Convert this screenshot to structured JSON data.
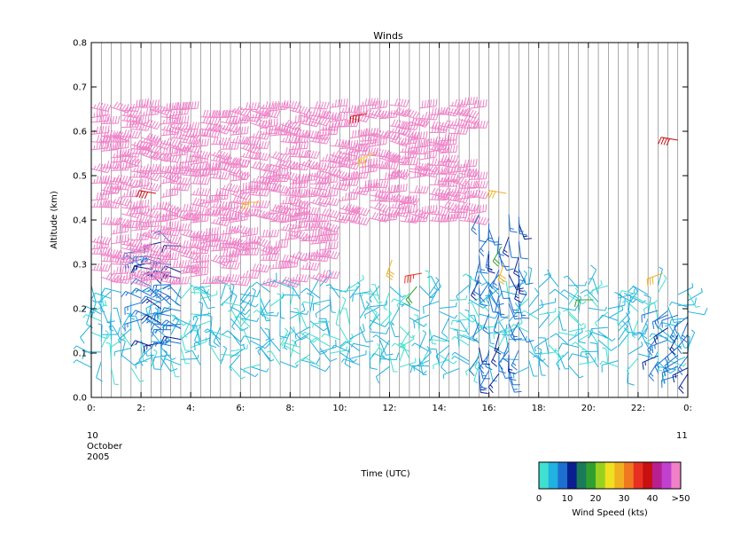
{
  "chart_data": {
    "type": "wind_barb_time_height",
    "title": "Winds",
    "ylabel": "Altitude (km)",
    "xlabel": "Time (UTC)",
    "ylim": [
      0.0,
      0.8
    ],
    "xlim_hours": [
      0,
      24
    ],
    "y_ticks": [
      "0.0",
      "0.1",
      "0.2",
      "0.3",
      "0.4",
      "0.5",
      "0.6",
      "0.7",
      "0.8"
    ],
    "x_ticks": [
      {
        "hour": 0,
        "label": "0:"
      },
      {
        "hour": 2,
        "label": "2:"
      },
      {
        "hour": 4,
        "label": "4:"
      },
      {
        "hour": 6,
        "label": "6:"
      },
      {
        "hour": 8,
        "label": "8:"
      },
      {
        "hour": 10,
        "label": "10:"
      },
      {
        "hour": 12,
        "label": "12:"
      },
      {
        "hour": 14,
        "label": "14:"
      },
      {
        "hour": 16,
        "label": "16:"
      },
      {
        "hour": 18,
        "label": "18:"
      },
      {
        "hour": 20,
        "label": "20:"
      },
      {
        "hour": 22,
        "label": "22:"
      },
      {
        "hour": 24,
        "label": "0:"
      }
    ],
    "date_start": {
      "day": "10",
      "month": "October",
      "year": "2005"
    },
    "date_end": {
      "day": "11"
    },
    "profile_interval_min": 24,
    "grid": true,
    "colorbar": {
      "label": "Wind Speed (kts)",
      "tick_labels": [
        "0",
        "10",
        "20",
        "30",
        "40",
        ">50"
      ],
      "bins": [
        {
          "kts": 0,
          "color": "#40e0d0"
        },
        {
          "kts": 5,
          "color": "#20b2e0"
        },
        {
          "kts": 10,
          "color": "#1e70d0"
        },
        {
          "kts": 15,
          "color": "#0a1f8f"
        },
        {
          "kts": 18,
          "color": "#1a7a5a"
        },
        {
          "kts": 20,
          "color": "#2fa02f"
        },
        {
          "kts": 25,
          "color": "#98d020"
        },
        {
          "kts": 28,
          "color": "#f0e020"
        },
        {
          "kts": 30,
          "color": "#f0b020"
        },
        {
          "kts": 33,
          "color": "#f07820"
        },
        {
          "kts": 36,
          "color": "#e83020"
        },
        {
          "kts": 40,
          "color": "#c81010"
        },
        {
          "kts": 43,
          "color": "#b82090"
        },
        {
          "kts": 46,
          "color": "#c040d0"
        },
        {
          "kts": 50,
          "color": "#f080c8"
        }
      ]
    },
    "speed_regimes": [
      {
        "hour_range": [
          0,
          24
        ],
        "alt_range": [
          0.07,
          0.26
        ],
        "speed_kts": [
          3,
          9
        ],
        "dir_deg": [
          0,
          360
        ]
      },
      {
        "hour_range": [
          2,
          3.6
        ],
        "alt_range": [
          0.12,
          0.35
        ],
        "speed_kts": [
          12,
          16
        ],
        "dir_deg": [
          250,
          320
        ]
      },
      {
        "hour_range": [
          0,
          9.5
        ],
        "alt_range": [
          0.26,
          0.66
        ],
        "speed_kts": [
          50,
          60
        ],
        "dir_deg": [
          80,
          110
        ]
      },
      {
        "hour_range": [
          9.5,
          15.5
        ],
        "alt_range": [
          0.4,
          0.66
        ],
        "speed_kts": [
          50,
          60
        ],
        "dir_deg": [
          80,
          110
        ]
      },
      {
        "hour_range": [
          15.5,
          17.5
        ],
        "alt_range": [
          0.05,
          0.42
        ],
        "speed_kts": [
          10,
          16
        ],
        "dir_deg": [
          150,
          220
        ]
      },
      {
        "hour_range": [
          22.5,
          24
        ],
        "alt_range": [
          0.05,
          0.2
        ],
        "speed_kts": [
          12,
          16
        ],
        "dir_deg": [
          200,
          260
        ]
      }
    ],
    "highlight_barbs": [
      {
        "hour": 2.6,
        "alt": 0.46,
        "speed_kts": 40,
        "dir_deg": 280
      },
      {
        "hour": 6.8,
        "alt": 0.44,
        "speed_kts": 32,
        "dir_deg": 270
      },
      {
        "hour": 11.1,
        "alt": 0.64,
        "speed_kts": 40,
        "dir_deg": 260
      },
      {
        "hour": 11.4,
        "alt": 0.55,
        "speed_kts": 28,
        "dir_deg": 250
      },
      {
        "hour": 12.1,
        "alt": 0.31,
        "speed_kts": 30,
        "dir_deg": 200
      },
      {
        "hour": 13.3,
        "alt": 0.28,
        "speed_kts": 36,
        "dir_deg": 260
      },
      {
        "hour": 13.1,
        "alt": 0.25,
        "speed_kts": 20,
        "dir_deg": 220
      },
      {
        "hour": 16.5,
        "alt": 0.34,
        "speed_kts": 22,
        "dir_deg": 210
      },
      {
        "hour": 16.6,
        "alt": 0.3,
        "speed_kts": 30,
        "dir_deg": 200
      },
      {
        "hour": 16.7,
        "alt": 0.46,
        "speed_kts": 30,
        "dir_deg": 280
      },
      {
        "hour": 20.2,
        "alt": 0.22,
        "speed_kts": 20,
        "dir_deg": 270
      },
      {
        "hour": 23.0,
        "alt": 0.28,
        "speed_kts": 30,
        "dir_deg": 250
      },
      {
        "hour": 23.6,
        "alt": 0.58,
        "speed_kts": 40,
        "dir_deg": 280
      }
    ]
  }
}
